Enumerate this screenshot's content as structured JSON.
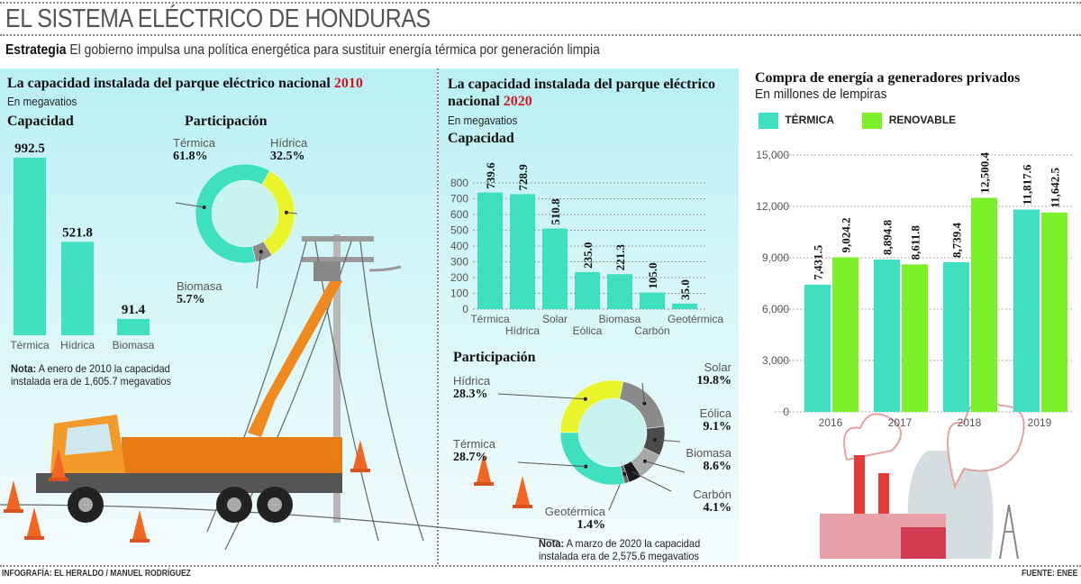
{
  "header": {
    "title": "EL SISTEMA ELÉCTRICO DE HONDURAS",
    "strategy_label": "Estrategia",
    "strategy_text": " El gobierno impulsa una política energética para sustituir energía térmica por generación limpia"
  },
  "colors": {
    "termica": "#3fe0c0",
    "hidrica": "#e9f52a",
    "renovable": "#7cf02a",
    "gray": "#8a8a8a",
    "dark": "#4a4a4a",
    "mid": "#a8a8a8",
    "black": "#1a1a1a",
    "accent": "#d2161e",
    "panel": "#c8f3f6"
  },
  "panel_2010": {
    "title": "La capacidad instalada del parque eléctrico nacional ",
    "year": "2010",
    "unit": "En megavatios",
    "cap_heading": "Capacidad",
    "part_heading": "Participación",
    "note_label": "Nota:",
    "note_text": " A enero de 2010 la capacidad instalada era de 1,605.7 megavatios"
  },
  "panel_2020": {
    "title": "La capacidad instalada del parque eléctrico nacional ",
    "year": "2020",
    "unit": "En megavatios",
    "cap_heading": "Capacidad",
    "part_heading": "Participación",
    "note_label": "Nota:",
    "note_text": " A marzo de 2020 la capacidad instalada era de 2,575.6 megavatios"
  },
  "panel_purchase": {
    "title": "Compra de energía a generadores privados",
    "unit": "En millones de lempiras"
  },
  "footer": {
    "credit": "INFOGRAFÍA: EL HERALDO / MANUEL RODRÍGUEZ",
    "source": "FUENTE: ENEE"
  },
  "chart_data": [
    {
      "type": "bar",
      "title": "Capacidad",
      "categories": [
        "Térmica",
        "Hídrica",
        "Biomasa"
      ],
      "values": [
        992.5,
        521.8,
        91.4
      ],
      "value_labels": [
        "992.5",
        "521.8",
        "91.4"
      ]
    },
    {
      "type": "pie",
      "title": "Participación",
      "slices": [
        {
          "name": "Hídrica",
          "value": 32.5,
          "label": "32.5%"
        },
        {
          "name": "Biomasa",
          "value": 5.7,
          "label": "5.7%"
        },
        {
          "name": "Térmica",
          "value": 61.8,
          "label": "61.8%"
        }
      ]
    },
    {
      "type": "bar",
      "title": "Capacidad",
      "categories": [
        "Térmica",
        "Hídrica",
        "Solar",
        "Eólica",
        "Biomasa",
        "Carbón",
        "Geotérmica"
      ],
      "values": [
        739.6,
        728.9,
        510.8,
        235.0,
        221.3,
        105.0,
        35.0
      ],
      "value_labels": [
        "739.6",
        "728.9",
        "510.8",
        "235.0",
        "221.3",
        "105.0",
        "35.0"
      ],
      "ylim": [
        0,
        800
      ],
      "yticks": [
        "0",
        "100",
        "200",
        "300",
        "400",
        "500",
        "600",
        "700",
        "800"
      ],
      "grid": true
    },
    {
      "type": "pie",
      "title": "Participación",
      "slices": [
        {
          "name": "Hídrica",
          "value": 28.3,
          "label": "28.3%"
        },
        {
          "name": "Solar",
          "value": 19.8,
          "label": "19.8%"
        },
        {
          "name": "Eólica",
          "value": 9.1,
          "label": "9.1%"
        },
        {
          "name": "Biomasa",
          "value": 8.6,
          "label": "8.6%"
        },
        {
          "name": "Carbón",
          "value": 4.1,
          "label": "4.1%"
        },
        {
          "name": "Geotérmica",
          "value": 1.4,
          "label": "1.4%"
        },
        {
          "name": "Térmica",
          "value": 28.7,
          "label": "28.7%"
        }
      ]
    },
    {
      "type": "bar",
      "title": "Compra de energía a generadores privados",
      "categories": [
        "2016",
        "2017",
        "2018",
        "2019"
      ],
      "series": [
        {
          "name": "TÉRMICA",
          "values": [
            7431.5,
            8894.8,
            8739.4,
            11817.6
          ],
          "value_labels": [
            "7,431.5",
            "8,894.8",
            "8,739.4",
            "11,817.6"
          ]
        },
        {
          "name": "RENOVABLE",
          "values": [
            9024.2,
            8611.8,
            12500.4,
            11642.5
          ],
          "value_labels": [
            "9,024.2",
            "8,611.8",
            "12,500.4",
            "11,642.5"
          ]
        }
      ],
      "ylim": [
        0,
        15000
      ],
      "yticks": [
        "0",
        "3,000",
        "6,000",
        "9,000",
        "12,000",
        "15,000"
      ],
      "grid": true,
      "legend": "top-left"
    }
  ]
}
